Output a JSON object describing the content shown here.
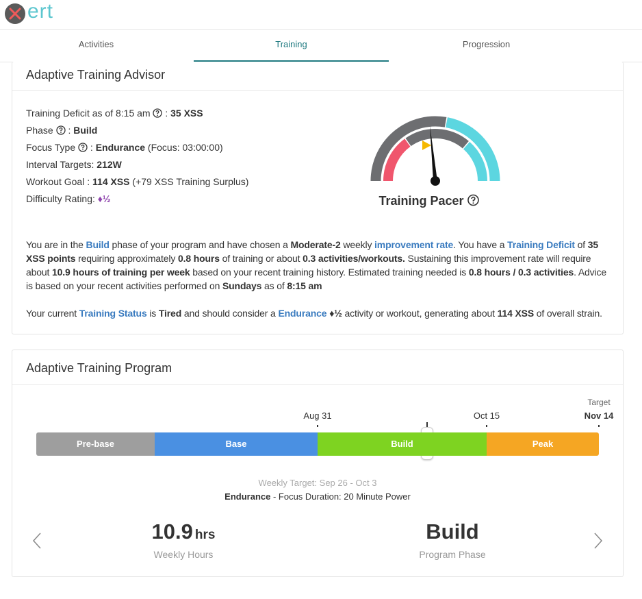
{
  "header": {
    "logo": "ert"
  },
  "tabs": [
    {
      "label": "Activities"
    },
    {
      "label": "Training",
      "active": true
    },
    {
      "label": "Progression"
    }
  ],
  "advisor": {
    "title": "Adaptive Training Advisor",
    "stats": [
      [
        {
          "text": "Training Deficit as of 8:15 am "
        },
        {
          "style": "help"
        },
        {
          "text": " : "
        },
        {
          "text": "35 XSS",
          "style": "b"
        }
      ],
      [
        {
          "text": "Phase "
        },
        {
          "style": "help"
        },
        {
          "text": " : "
        },
        {
          "text": "Build",
          "style": "b"
        }
      ],
      [
        {
          "text": "Focus Type "
        },
        {
          "style": "help"
        },
        {
          "text": " : "
        },
        {
          "text": "Endurance",
          "style": "b"
        },
        {
          "text": " (Focus: 03:00:00)"
        }
      ],
      [
        {
          "text": "Interval Targets: "
        },
        {
          "text": "212W",
          "style": "b"
        }
      ],
      [
        {
          "text": "Workout Goal : "
        },
        {
          "text": "114 XSS",
          "style": "b"
        },
        {
          "text": " (+79 XSS Training Surplus)"
        }
      ],
      [
        {
          "text": "Difficulty Rating: "
        },
        {
          "text": "♦½",
          "style": "purple"
        }
      ]
    ],
    "pacer": {
      "label": "Training Pacer"
    },
    "paragraphs": [
      [
        {
          "text": "You are in the "
        },
        {
          "text": "Build",
          "style": "lb"
        },
        {
          "text": " phase of your program and have chosen a "
        },
        {
          "text": "Moderate-2",
          "style": "b"
        },
        {
          "text": " weekly "
        },
        {
          "text": "improvement rate",
          "style": "lb"
        },
        {
          "text": ". You have a "
        },
        {
          "text": "Training Deficit",
          "style": "lb"
        },
        {
          "text": " of "
        },
        {
          "text": "35 XSS points",
          "style": "b"
        },
        {
          "text": " requiring approximately "
        },
        {
          "text": "0.8 hours",
          "style": "b"
        },
        {
          "text": " of training or about "
        },
        {
          "text": "0.3 activities/workouts.",
          "style": "b"
        },
        {
          "text": " Sustaining this improvement rate will require about "
        },
        {
          "text": "10.9 hours of training per week",
          "style": "b"
        },
        {
          "text": " based on your recent training history. Estimated training needed is "
        },
        {
          "text": "0.8 hours / 0.3 activities",
          "style": "b"
        },
        {
          "text": ". Advice is based on your recent activities performed on "
        },
        {
          "text": "Sundays",
          "style": "b"
        },
        {
          "text": " as of "
        },
        {
          "text": "8:15 am",
          "style": "b"
        }
      ],
      [
        {
          "text": "Your current "
        },
        {
          "text": "Training Status",
          "style": "lb"
        },
        {
          "text": " is "
        },
        {
          "text": "Tired",
          "style": "b"
        },
        {
          "text": " and should consider a "
        },
        {
          "text": "Endurance",
          "style": "lb"
        },
        {
          "text": " "
        },
        {
          "text": "♦½",
          "style": "b"
        },
        {
          "text": " activity or workout, generating about "
        },
        {
          "text": "114 XSS",
          "style": "b"
        },
        {
          "text": " of overall strain."
        }
      ]
    ]
  },
  "program": {
    "title": "Adaptive Training Program",
    "phases": [
      {
        "label": "Pre-base",
        "color": "#9e9e9e"
      },
      {
        "label": "Base",
        "color": "#4a90e2"
      },
      {
        "label": "Build",
        "color": "#7ed321"
      },
      {
        "label": "Peak",
        "color": "#f5a623"
      }
    ],
    "dates": [
      {
        "label": "Aug 31"
      },
      {
        "label": "Oct 15"
      },
      {
        "caption": "Target",
        "label": "Nov 14"
      }
    ],
    "weekly_target": "Weekly Target: Sep 26 - Oct 3",
    "focus": [
      {
        "text": "Endurance",
        "style": "b"
      },
      {
        "text": " - Focus Duration: 20 Minute Power"
      }
    ],
    "summary": [
      {
        "value": "10.9",
        "unit": "hrs",
        "label": "Weekly Hours"
      },
      {
        "value": "Build",
        "label": "Program Phase"
      }
    ]
  }
}
